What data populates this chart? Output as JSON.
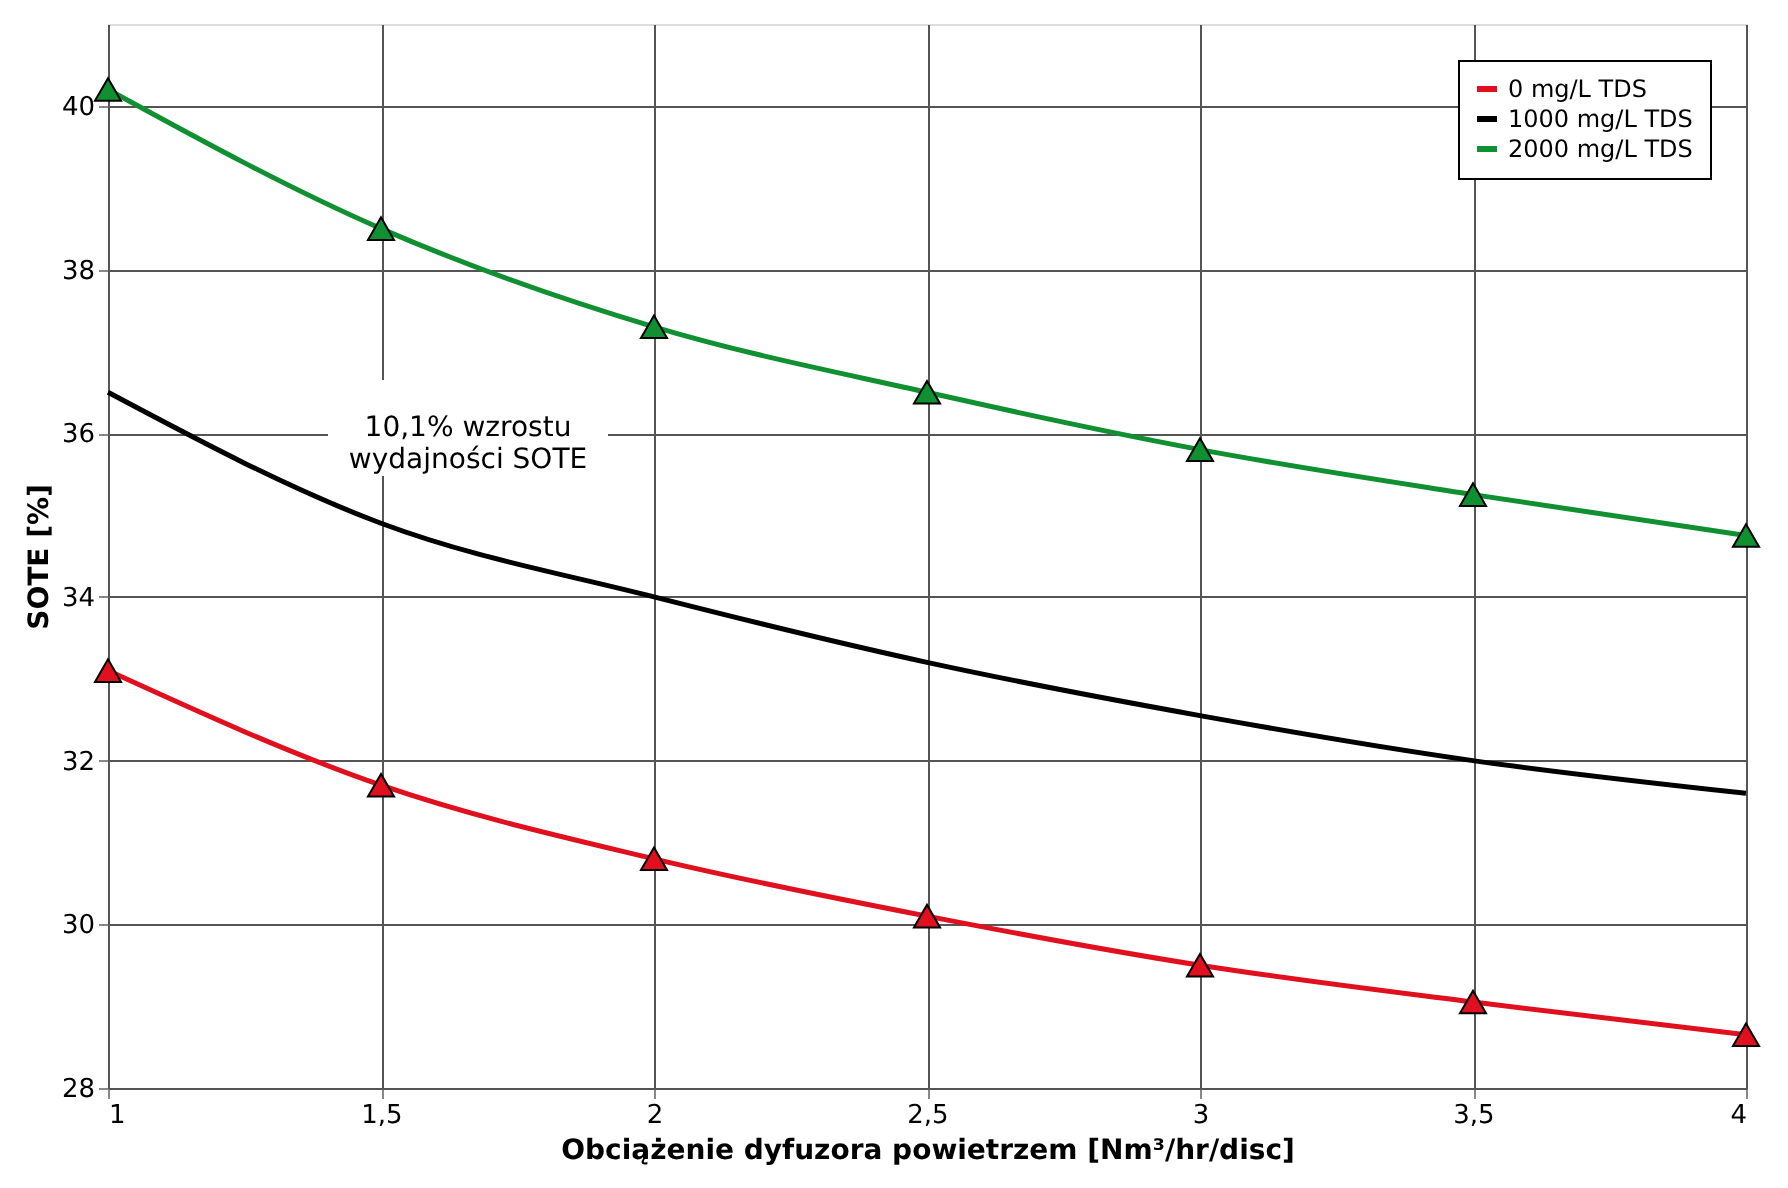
{
  "chart_data": {
    "type": "line",
    "xlabel": "Obciążenie dyfuzora powietrzem [Nm³/hr/disc]",
    "ylabel": "SOTE [%]",
    "x": [
      1,
      1.5,
      2,
      2.5,
      3,
      3.5,
      4
    ],
    "series": [
      {
        "name": "0 mg/L TDS",
        "color": "#e0101e",
        "marker": "triangle",
        "values": [
          33.1,
          31.7,
          30.8,
          30.1,
          29.5,
          29.05,
          28.65
        ]
      },
      {
        "name": "1000 mg/L TDS",
        "color": "#000000",
        "marker": "none",
        "values": [
          36.5,
          34.9,
          34.0,
          33.2,
          32.55,
          32.0,
          31.6
        ]
      },
      {
        "name": "2000 mg/L TDS",
        "color": "#109030",
        "marker": "triangle",
        "values": [
          40.2,
          38.5,
          37.3,
          36.5,
          35.8,
          35.25,
          34.75
        ]
      }
    ],
    "xlim": [
      1,
      4
    ],
    "xticks": [
      1,
      {
        "value": 1.5,
        "label": "1,5"
      },
      2,
      {
        "value": 2.5,
        "label": "2,5"
      },
      3,
      {
        "value": 3.5,
        "label": "3,5"
      },
      4
    ],
    "ylim": [
      28,
      41
    ],
    "yticks": [
      28,
      30,
      32,
      34,
      36,
      38,
      40
    ],
    "annotations": [
      "10,1% wzrostu\nwydajności SOTE"
    ],
    "grid": true,
    "legend": "top right",
    "line_style": "solid"
  }
}
